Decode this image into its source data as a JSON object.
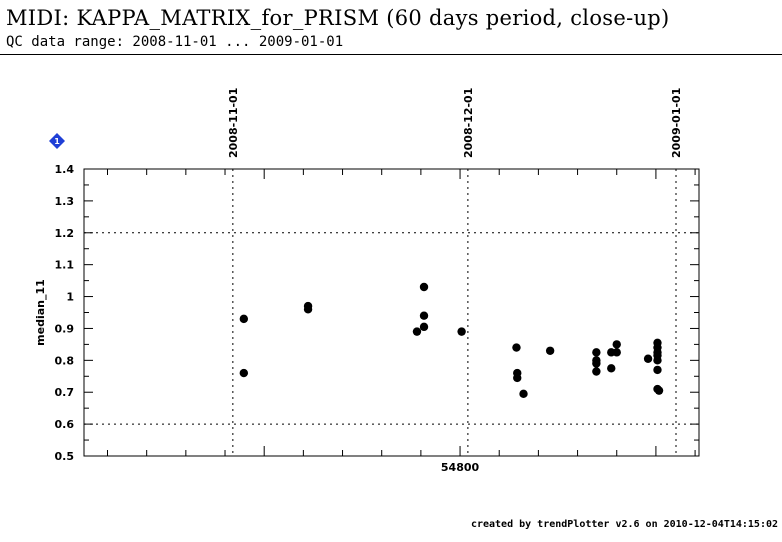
{
  "header": {
    "title": "MIDI: KAPPA_MATRIX_for_PRISM (60 days period, close-up)",
    "subtitle": "QC data range: 2008-11-01 ... 2009-01-01"
  },
  "footer": {
    "credit": "created by trendPlotter v2.6 on 2010-12-04T14:15:02"
  },
  "marker": {
    "label": "1",
    "color": "#1f3fd6"
  },
  "chart_data": {
    "type": "scatter",
    "title": "",
    "xlabel": "",
    "ylabel": "median_11",
    "xlim": [
      54752,
      54830.5
    ],
    "ylim": [
      0.5,
      1.4
    ],
    "yticks": [
      "0.5",
      "0.6",
      "0.7",
      "0.8",
      "0.9",
      "1",
      "1.1",
      "1.2",
      "1.3",
      "1.4"
    ],
    "xtick_labels": [
      {
        "value": 54800,
        "label": "54800"
      }
    ],
    "date_lines": [
      {
        "mjd": 54771,
        "label": "2008-11-01"
      },
      {
        "mjd": 54801,
        "label": "2008-12-01"
      },
      {
        "mjd": 54832,
        "label": "2009-01-01"
      }
    ],
    "reference_lines": [
      0.6,
      1.2
    ],
    "marker_color": "#000000",
    "points": [
      {
        "x": 54772.4,
        "y": 0.93
      },
      {
        "x": 54772.4,
        "y": 0.76
      },
      {
        "x": 54780.6,
        "y": 0.97
      },
      {
        "x": 54780.6,
        "y": 0.96
      },
      {
        "x": 54794.5,
        "y": 0.89
      },
      {
        "x": 54795.4,
        "y": 1.03
      },
      {
        "x": 54795.4,
        "y": 0.94
      },
      {
        "x": 54795.4,
        "y": 0.905
      },
      {
        "x": 54800.2,
        "y": 0.89
      },
      {
        "x": 54807.2,
        "y": 0.84
      },
      {
        "x": 54807.3,
        "y": 0.76
      },
      {
        "x": 54807.3,
        "y": 0.745
      },
      {
        "x": 54808.1,
        "y": 0.695
      },
      {
        "x": 54811.5,
        "y": 0.83
      },
      {
        "x": 54817.4,
        "y": 0.825
      },
      {
        "x": 54817.4,
        "y": 0.8
      },
      {
        "x": 54817.4,
        "y": 0.79
      },
      {
        "x": 54817.4,
        "y": 0.765
      },
      {
        "x": 54819.3,
        "y": 0.825
      },
      {
        "x": 54819.3,
        "y": 0.775
      },
      {
        "x": 54820.0,
        "y": 0.85
      },
      {
        "x": 54820.0,
        "y": 0.825
      },
      {
        "x": 54824.0,
        "y": 0.805
      },
      {
        "x": 54825.2,
        "y": 0.855
      },
      {
        "x": 54825.2,
        "y": 0.84
      },
      {
        "x": 54825.2,
        "y": 0.825
      },
      {
        "x": 54825.2,
        "y": 0.815
      },
      {
        "x": 54825.2,
        "y": 0.8
      },
      {
        "x": 54825.2,
        "y": 0.77
      },
      {
        "x": 54825.2,
        "y": 0.71
      },
      {
        "x": 54825.4,
        "y": 0.705
      }
    ]
  }
}
